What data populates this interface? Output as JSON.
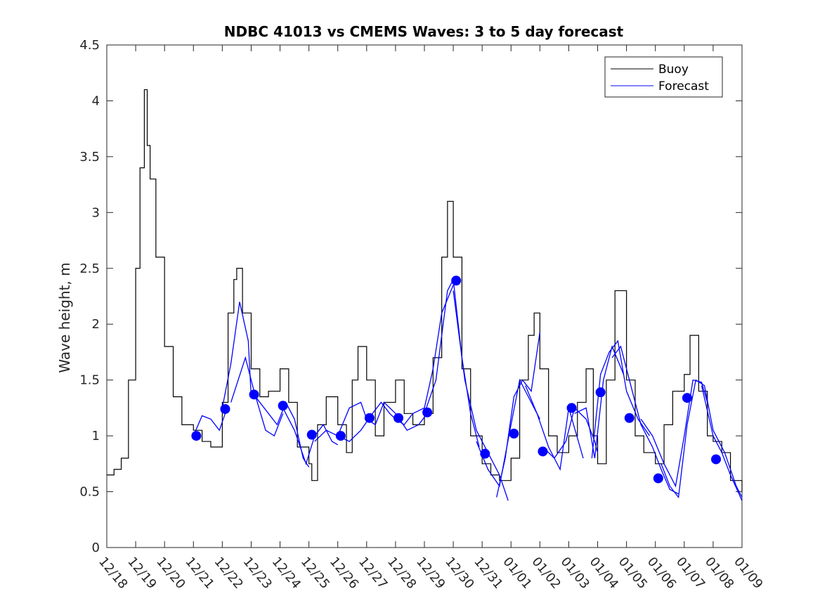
{
  "chart_data": {
    "type": "line",
    "title": "NDBC 41013 vs CMEMS Waves: 3 to 5 day forecast",
    "xlabel": "",
    "ylabel": "Wave height, m",
    "xlim": [
      0,
      22
    ],
    "ylim": [
      0,
      4.5
    ],
    "x_ticks": [
      0,
      1,
      2,
      3,
      4,
      5,
      6,
      7,
      8,
      9,
      10,
      11,
      12,
      13,
      14,
      15,
      16,
      17,
      18,
      19,
      20,
      21,
      22
    ],
    "x_tick_labels": [
      "12/18",
      "12/19",
      "12/20",
      "12/21",
      "12/22",
      "12/23",
      "12/24",
      "12/25",
      "12/26",
      "12/27",
      "12/28",
      "12/29",
      "12/30",
      "12/31",
      "01/01",
      "01/02",
      "01/03",
      "01/04",
      "01/05",
      "01/06",
      "01/07",
      "01/08",
      "01/09"
    ],
    "y_ticks": [
      0,
      0.5,
      1,
      1.5,
      2,
      2.5,
      3,
      3.5,
      4,
      4.5
    ],
    "y_tick_labels": [
      "0",
      "0.5",
      "1",
      "1.5",
      "2",
      "2.5",
      "3",
      "3.5",
      "4",
      "4.5"
    ],
    "legend": {
      "position": "top-right",
      "entries": [
        "Buoy",
        "Forecast"
      ]
    },
    "colors": {
      "buoy": "#000000",
      "forecast": "#0000ff",
      "axis": "#262626"
    },
    "series": [
      {
        "name": "Buoy",
        "x": [
          0,
          0.25,
          0.5,
          0.75,
          1.0,
          1.15,
          1.3,
          1.4,
          1.5,
          1.7,
          2.0,
          2.3,
          2.6,
          3.0,
          3.3,
          3.6,
          4.0,
          4.2,
          4.4,
          4.5,
          4.7,
          5.0,
          5.3,
          5.6,
          6.0,
          6.3,
          6.6,
          7.0,
          7.1,
          7.3,
          7.6,
          8.0,
          8.3,
          8.5,
          8.7,
          9.0,
          9.3,
          9.6,
          10.0,
          10.3,
          10.6,
          11.0,
          11.3,
          11.6,
          11.8,
          12.0,
          12.3,
          12.6,
          13.0,
          13.3,
          13.6,
          14.0,
          14.3,
          14.6,
          14.8,
          15.0,
          15.3,
          15.6,
          16.0,
          16.3,
          16.6,
          16.85,
          17.0,
          17.3,
          17.6,
          18.0,
          18.3,
          18.6,
          19.0,
          19.3,
          19.6,
          20.0,
          20.2,
          20.5,
          20.8,
          21.0,
          21.3,
          21.6,
          22.0
        ],
        "values": [
          0.65,
          0.7,
          0.8,
          1.5,
          2.5,
          3.4,
          4.1,
          3.6,
          3.3,
          2.6,
          1.8,
          1.35,
          1.1,
          1.05,
          0.95,
          0.9,
          1.3,
          2.1,
          2.4,
          2.5,
          2.1,
          1.6,
          1.35,
          1.4,
          1.6,
          1.3,
          0.9,
          0.75,
          0.6,
          1.1,
          1.35,
          1.1,
          0.85,
          1.5,
          1.8,
          1.5,
          1.0,
          1.3,
          1.5,
          1.2,
          1.1,
          1.2,
          1.7,
          2.6,
          3.1,
          2.6,
          1.6,
          1.0,
          0.75,
          0.65,
          0.6,
          0.8,
          1.5,
          1.9,
          2.1,
          1.6,
          1.0,
          0.85,
          1.0,
          1.3,
          1.6,
          1.0,
          0.75,
          1.5,
          2.3,
          1.5,
          1.0,
          0.85,
          0.75,
          1.1,
          1.4,
          1.55,
          1.9,
          1.4,
          1.0,
          0.95,
          0.85,
          0.6,
          0.5
        ]
      },
      {
        "name": "Forecast",
        "segments": [
          {
            "x": [
              3.0,
              3.3,
              3.6,
              3.9,
              4.1
            ],
            "values": [
              1.0,
              1.18,
              1.15,
              1.05,
              1.2
            ]
          },
          {
            "x": [
              4.0,
              4.3,
              4.6,
              4.9,
              5.0
            ],
            "values": [
              1.25,
              1.65,
              2.2,
              1.85,
              1.35
            ]
          },
          {
            "x": [
              4.3,
              4.8,
              5.1,
              5.5,
              5.8,
              6.1
            ],
            "values": [
              1.3,
              1.7,
              1.4,
              1.05,
              1.0,
              1.2
            ]
          },
          {
            "x": [
              5.0,
              5.3,
              5.6,
              5.9,
              6.2,
              6.5,
              6.8,
              7.0
            ],
            "values": [
              1.4,
              1.3,
              1.2,
              1.1,
              1.3,
              1.15,
              0.8,
              0.72
            ]
          },
          {
            "x": [
              6.1,
              6.5,
              6.9,
              7.2,
              7.5,
              7.8,
              8.0
            ],
            "values": [
              1.25,
              1.05,
              0.75,
              1.0,
              1.1,
              0.95,
              0.92
            ]
          },
          {
            "x": [
              7.2,
              7.6,
              8.0,
              8.4,
              8.8,
              9.0
            ],
            "values": [
              0.95,
              1.05,
              1.0,
              1.25,
              1.3,
              1.15
            ]
          },
          {
            "x": [
              8.0,
              8.4,
              8.8,
              9.2,
              9.5,
              9.8,
              10.0
            ],
            "values": [
              1.0,
              0.95,
              1.05,
              1.2,
              1.3,
              1.2,
              1.15
            ]
          },
          {
            "x": [
              9.0,
              9.3,
              9.6,
              10.0,
              10.4,
              10.8,
              11.1
            ],
            "values": [
              1.15,
              1.1,
              1.3,
              1.2,
              1.05,
              1.1,
              1.2
            ]
          },
          {
            "x": [
              10.0,
              10.3,
              10.6,
              11.0,
              11.3,
              11.6,
              12.0
            ],
            "values": [
              1.15,
              1.1,
              1.2,
              1.25,
              1.6,
              2.1,
              2.35
            ]
          },
          {
            "x": [
              11.0,
              11.4,
              11.8,
              12.0,
              12.3,
              12.6,
              12.9
            ],
            "values": [
              1.2,
              1.5,
              2.3,
              2.4,
              1.7,
              1.2,
              0.9
            ]
          },
          {
            "x": [
              12.0,
              12.4,
              12.8,
              13.2,
              13.6,
              13.9
            ],
            "values": [
              2.3,
              1.5,
              1.05,
              0.85,
              0.65,
              0.42
            ]
          },
          {
            "x": [
              12.8,
              13.2,
              13.6,
              14.0,
              14.3,
              14.6,
              14.9,
              15.0
            ],
            "values": [
              0.95,
              0.7,
              0.55,
              1.1,
              1.5,
              1.35,
              1.2,
              1.15
            ]
          },
          {
            "x": [
              13.5,
              13.8,
              14.1,
              14.4,
              14.7,
              15.0
            ],
            "values": [
              0.45,
              0.8,
              1.35,
              1.5,
              1.4,
              1.93
            ]
          },
          {
            "x": [
              14.5,
              14.9,
              15.3,
              15.7,
              16.0,
              16.5
            ],
            "values": [
              1.45,
              1.2,
              0.9,
              0.7,
              1.25,
              0.8
            ]
          },
          {
            "x": [
              15.1,
              15.5,
              15.9,
              16.2,
              16.6,
              16.9,
              17.0
            ],
            "values": [
              0.9,
              0.8,
              0.95,
              1.25,
              1.15,
              0.95,
              0.85
            ]
          },
          {
            "x": [
              16.2,
              16.6,
              16.9,
              17.2,
              17.5,
              17.9
            ],
            "values": [
              1.2,
              1.25,
              0.8,
              1.5,
              1.8,
              1.55
            ]
          },
          {
            "x": [
              16.8,
              17.1,
              17.4,
              17.7,
              18.0,
              18.4,
              18.8
            ],
            "values": [
              0.8,
              1.55,
              1.75,
              1.85,
              1.4,
              1.15,
              1.0
            ]
          },
          {
            "x": [
              17.5,
              17.8,
              18.1,
              18.5,
              18.9,
              19.2,
              19.5,
              19.8
            ],
            "values": [
              1.7,
              1.8,
              1.5,
              1.1,
              0.9,
              0.7,
              0.52,
              0.48
            ]
          },
          {
            "x": [
              18.5,
              18.9,
              19.3,
              19.7,
              20.0,
              20.3,
              20.6,
              20.8
            ],
            "values": [
              1.15,
              1.0,
              0.75,
              0.55,
              1.0,
              1.5,
              1.48,
              1.3
            ]
          },
          {
            "x": [
              19.2,
              19.5,
              19.8,
              20.1,
              20.4,
              20.7,
              21.0,
              21.4,
              21.8,
              22.0
            ],
            "values": [
              0.75,
              0.55,
              0.45,
              1.1,
              1.5,
              1.45,
              1.05,
              0.85,
              0.55,
              0.45
            ]
          },
          {
            "x": [
              20.6,
              21.0,
              21.3,
              21.6,
              22.0
            ],
            "values": [
              1.45,
              1.0,
              0.85,
              0.65,
              0.42
            ]
          }
        ]
      },
      {
        "name": "Forecast markers",
        "x": [
          3.1,
          4.1,
          5.1,
          6.1,
          7.1,
          8.1,
          9.1,
          10.1,
          11.1,
          12.1,
          13.1,
          14.1,
          15.1,
          16.1,
          17.1,
          18.1,
          19.1,
          20.1,
          21.1
        ],
        "values": [
          1.0,
          1.24,
          1.37,
          1.27,
          1.01,
          1.0,
          1.16,
          1.16,
          1.21,
          2.39,
          0.84,
          1.02,
          0.86,
          1.25,
          1.39,
          1.16,
          0.62,
          1.34,
          0.79
        ]
      }
    ]
  }
}
